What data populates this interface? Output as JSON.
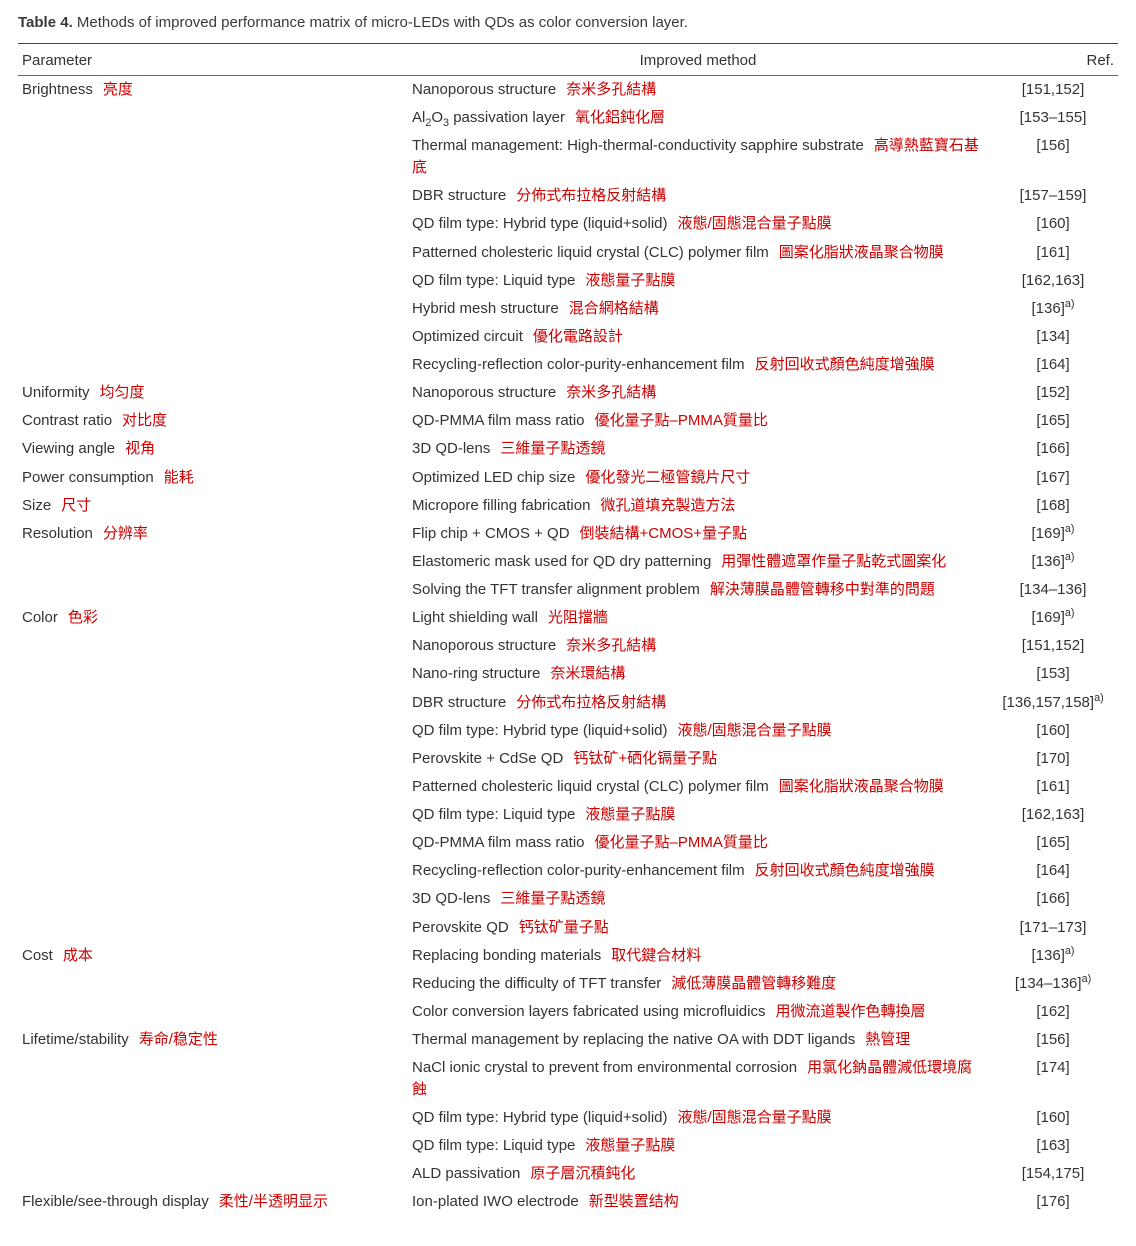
{
  "caption_bold": "Table 4.",
  "caption_rest": " Methods of improved performance matrix of micro-LEDs with QDs as color conversion layer.",
  "headers": {
    "param": "Parameter",
    "method": "Improved method",
    "ref": "Ref."
  },
  "annotation_color": "#cc0000",
  "text_color": "#333333",
  "border_color": "#555555",
  "groups": [
    {
      "param": "Brightness",
      "param_anno": "亮度",
      "rows": [
        {
          "method": "Nanoporous structure",
          "anno": "奈米多孔結構",
          "ref": "[151,152]"
        },
        {
          "method": "Al|sub|2|/sub|O|sub|3|/sub| passivation layer",
          "anno": "氧化鋁鈍化層",
          "ref": "[153–155]"
        },
        {
          "method": "Thermal management: High-thermal-conductivity sapphire substrate",
          "anno": "高導熱藍寶石基底",
          "ref": "[156]"
        },
        {
          "method": "DBR structure",
          "anno": "分佈式布拉格反射結構",
          "ref": "[157–159]"
        },
        {
          "method": "QD film type: Hybrid type (liquid+solid)",
          "anno": "液態/固態混合量子點膜",
          "ref": "[160]"
        },
        {
          "method": "Patterned cholesteric liquid crystal (CLC) polymer film",
          "anno": "圖案化脂狀液晶聚合物膜",
          "ref": "[161]"
        },
        {
          "method": "QD film type: Liquid type",
          "anno": "液態量子點膜",
          "ref": "[162,163]"
        },
        {
          "method": "Hybrid mesh structure",
          "anno": "混合網格結構",
          "ref": "[136]|sup|a)|/sup|"
        },
        {
          "method": "Optimized circuit",
          "anno": "優化電路設計",
          "ref": "[134]"
        },
        {
          "method": "Recycling-reflection color-purity-enhancement film",
          "anno": "反射回收式顏色純度增強膜",
          "ref": "[164]"
        }
      ]
    },
    {
      "param": "Uniformity",
      "param_anno": "均匀度",
      "rows": [
        {
          "method": "Nanoporous structure",
          "anno": "奈米多孔結構",
          "ref": "[152]"
        }
      ]
    },
    {
      "param": "Contrast ratio",
      "param_anno": "对比度",
      "rows": [
        {
          "method": "QD-PMMA film mass ratio",
          "anno": "優化量子點–PMMA質量比",
          "ref": "[165]"
        }
      ]
    },
    {
      "param": "Viewing angle",
      "param_anno": "视角",
      "rows": [
        {
          "method": "3D QD-lens",
          "anno": "三維量子點透鏡",
          "ref": "[166]"
        }
      ]
    },
    {
      "param": "Power consumption",
      "param_anno": "能耗",
      "rows": [
        {
          "method": "Optimized LED chip size",
          "anno": "優化發光二極管鏡片尺寸",
          "ref": "[167]"
        }
      ]
    },
    {
      "param": "Size",
      "param_anno": "尺寸",
      "rows": [
        {
          "method": "Micropore filling fabrication",
          "anno": "微孔道填充製造方法",
          "ref": "[168]"
        }
      ]
    },
    {
      "param": "Resolution",
      "param_anno": "分辨率",
      "rows": [
        {
          "method": "Flip chip + CMOS + QD",
          "anno": "倒裝結構+CMOS+量子點",
          "ref": "[169]|sup|a)|/sup|"
        },
        {
          "method": "Elastomeric mask used for QD dry patterning",
          "anno": "用彈性體遮罩作量子點乾式圖案化",
          "ref": "[136]|sup|a)|/sup|"
        },
        {
          "method": "Solving the TFT transfer alignment problem",
          "anno": "解決薄膜晶體管轉移中對準的問題",
          "ref": "[134–136]"
        }
      ]
    },
    {
      "param": "Color",
      "param_anno": "色彩",
      "rows": [
        {
          "method": "Light shielding wall",
          "anno": "光阻擋牆",
          "ref": "[169]|sup|a)|/sup|"
        },
        {
          "method": "Nanoporous structure",
          "anno": "奈米多孔結構",
          "ref": "[151,152]"
        },
        {
          "method": "Nano-ring structure",
          "anno": "奈米環結構",
          "ref": "[153]"
        },
        {
          "method": "DBR structure",
          "anno": "分佈式布拉格反射結構",
          "ref": "[136,157,158]|sup|a)|/sup|"
        },
        {
          "method": "QD film type: Hybrid type (liquid+solid)",
          "anno": "液態/固態混合量子點膜",
          "ref": "[160]"
        },
        {
          "method": "Perovskite + CdSe QD",
          "anno": "钙钛矿+硒化镉量子點",
          "ref": "[170]"
        },
        {
          "method": "Patterned cholesteric liquid crystal (CLC) polymer film",
          "anno": "圖案化脂狀液晶聚合物膜",
          "ref": "[161]"
        },
        {
          "method": "QD film type: Liquid type",
          "anno": "液態量子點膜",
          "ref": "[162,163]"
        },
        {
          "method": "QD-PMMA film mass ratio",
          "anno": "優化量子點–PMMA質量比",
          "ref": "[165]"
        },
        {
          "method": "Recycling-reflection color-purity-enhancement film",
          "anno": "反射回收式顏色純度增強膜",
          "ref": "[164]"
        },
        {
          "method": "3D QD-lens",
          "anno": "三維量子點透鏡",
          "ref": "[166]"
        },
        {
          "method": "Perovskite QD",
          "anno": "钙钛矿量子點",
          "ref": "[171–173]"
        }
      ]
    },
    {
      "param": "Cost",
      "param_anno": "成本",
      "rows": [
        {
          "method": "Replacing bonding materials",
          "anno": "取代鍵合材料",
          "ref": "[136]|sup|a)|/sup|"
        },
        {
          "method": "Reducing the difficulty of TFT transfer",
          "anno": "減低薄膜晶體管轉移難度",
          "ref": "[134–136]|sup|a)|/sup|"
        },
        {
          "method": "Color conversion layers fabricated using microfluidics",
          "anno": "用微流道製作色轉換層",
          "ref": "[162]"
        }
      ]
    },
    {
      "param": "Lifetime/stability",
      "param_anno": "寿命/稳定性",
      "rows": [
        {
          "method": "Thermal management by replacing the native OA with DDT ligands",
          "anno": "熱管理",
          "ref": "[156]"
        },
        {
          "method": "NaCl ionic crystal to prevent from environmental corrosion",
          "anno": "用氯化鈉晶體減低環境腐蝕",
          "ref": "[174]"
        },
        {
          "method": "QD film type: Hybrid type (liquid+solid)",
          "anno": "液態/固態混合量子點膜",
          "ref": "[160]"
        },
        {
          "method": "QD film type: Liquid type",
          "anno": "液態量子點膜",
          "ref": "[163]"
        },
        {
          "method": "ALD passivation",
          "anno": "原子層沉積鈍化",
          "ref": "[154,175]"
        }
      ]
    },
    {
      "param": "Flexible/see-through display",
      "param_anno": "柔性/半透明显示",
      "rows": [
        {
          "method": "Ion-plated IWO electrode",
          "anno": "新型裝置结构",
          "ref": "[176]"
        }
      ]
    }
  ]
}
